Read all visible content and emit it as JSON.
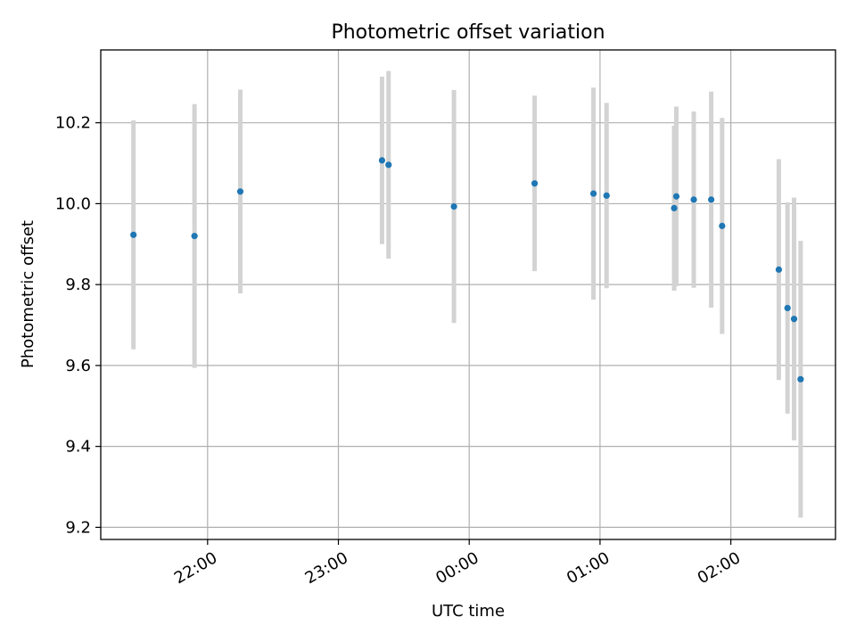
{
  "chart_data": {
    "type": "scatter",
    "title": "Photometric offset variation",
    "xlabel": "UTC time",
    "ylabel": "Photometric offset",
    "x_axis_kind": "time",
    "xlim": [
      "21:11",
      "02:48"
    ],
    "ylim": [
      9.17,
      10.38
    ],
    "grid": true,
    "x_ticks": [
      "22:00",
      "23:00",
      "00:00",
      "01:00",
      "02:00"
    ],
    "y_ticks": [
      9.2,
      9.4,
      9.6,
      9.8,
      10.0,
      10.2
    ],
    "point_color": "#1f77b4",
    "errorbar_color": "#d3d3d3",
    "points": [
      {
        "x": "21:26",
        "y": 9.923,
        "err": 0.283
      },
      {
        "x": "21:54",
        "y": 9.92,
        "err": 0.326
      },
      {
        "x": "22:15",
        "y": 10.03,
        "err": 0.252
      },
      {
        "x": "23:20",
        "y": 10.107,
        "err": 0.207
      },
      {
        "x": "23:23",
        "y": 10.096,
        "err": 0.232
      },
      {
        "x": "23:53",
        "y": 9.993,
        "err": 0.288
      },
      {
        "x": "00:30",
        "y": 10.05,
        "err": 0.217
      },
      {
        "x": "00:57",
        "y": 10.025,
        "err": 0.262
      },
      {
        "x": "01:03",
        "y": 10.02,
        "err": 0.229
      },
      {
        "x": "01:34",
        "y": 9.989,
        "err": 0.204
      },
      {
        "x": "01:35",
        "y": 10.018,
        "err": 0.222
      },
      {
        "x": "01:43",
        "y": 10.01,
        "err": 0.218
      },
      {
        "x": "01:51",
        "y": 10.01,
        "err": 0.267
      },
      {
        "x": "01:56",
        "y": 9.945,
        "err": 0.267
      },
      {
        "x": "02:22",
        "y": 9.837,
        "err": 0.273
      },
      {
        "x": "02:26",
        "y": 9.742,
        "err": 0.261
      },
      {
        "x": "02:29",
        "y": 9.715,
        "err": 0.3
      },
      {
        "x": "02:32",
        "y": 9.566,
        "err": 0.342
      }
    ]
  }
}
